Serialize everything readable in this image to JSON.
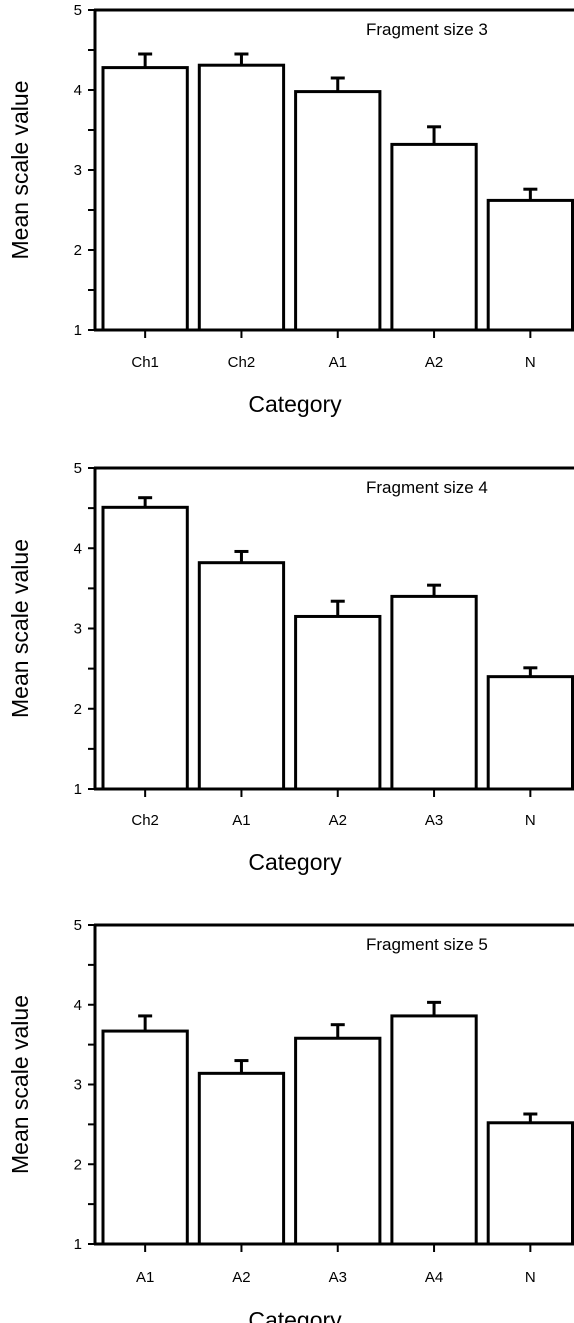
{
  "chart_data": [
    {
      "type": "bar",
      "title": "Fragment size 3",
      "xlabel": "Category",
      "ylabel": "Mean scale value",
      "ylim": [
        1,
        5
      ],
      "yticks": [
        "1",
        "2",
        "3",
        "4",
        "5"
      ],
      "categories": [
        "Ch1",
        "Ch2",
        "A1",
        "A2",
        "N"
      ],
      "values": [
        4.28,
        4.31,
        3.98,
        3.32,
        2.62
      ],
      "errors": [
        0.17,
        0.14,
        0.17,
        0.22,
        0.14
      ],
      "error_bars": "upper only",
      "grid": false
    },
    {
      "type": "bar",
      "title": "Fragment size 4",
      "xlabel": "Category",
      "ylabel": "Mean scale value",
      "ylim": [
        1,
        5
      ],
      "yticks": [
        "1",
        "2",
        "3",
        "4",
        "5"
      ],
      "categories": [
        "Ch2",
        "A1",
        "A2",
        "A3",
        "N"
      ],
      "values": [
        4.51,
        3.82,
        3.15,
        3.4,
        2.4
      ],
      "errors": [
        0.12,
        0.14,
        0.19,
        0.14,
        0.11
      ],
      "error_bars": "upper only",
      "grid": false
    },
    {
      "type": "bar",
      "title": "Fragment size 5",
      "xlabel": "Category",
      "ylabel": "Mean scale value",
      "ylim": [
        1,
        5
      ],
      "yticks": [
        "1",
        "2",
        "3",
        "4",
        "5"
      ],
      "categories": [
        "A1",
        "A2",
        "A3",
        "A4",
        "N"
      ],
      "values": [
        3.67,
        3.14,
        3.58,
        3.86,
        2.52
      ],
      "errors": [
        0.19,
        0.16,
        0.17,
        0.17,
        0.11
      ],
      "error_bars": "upper only",
      "grid": false
    }
  ]
}
